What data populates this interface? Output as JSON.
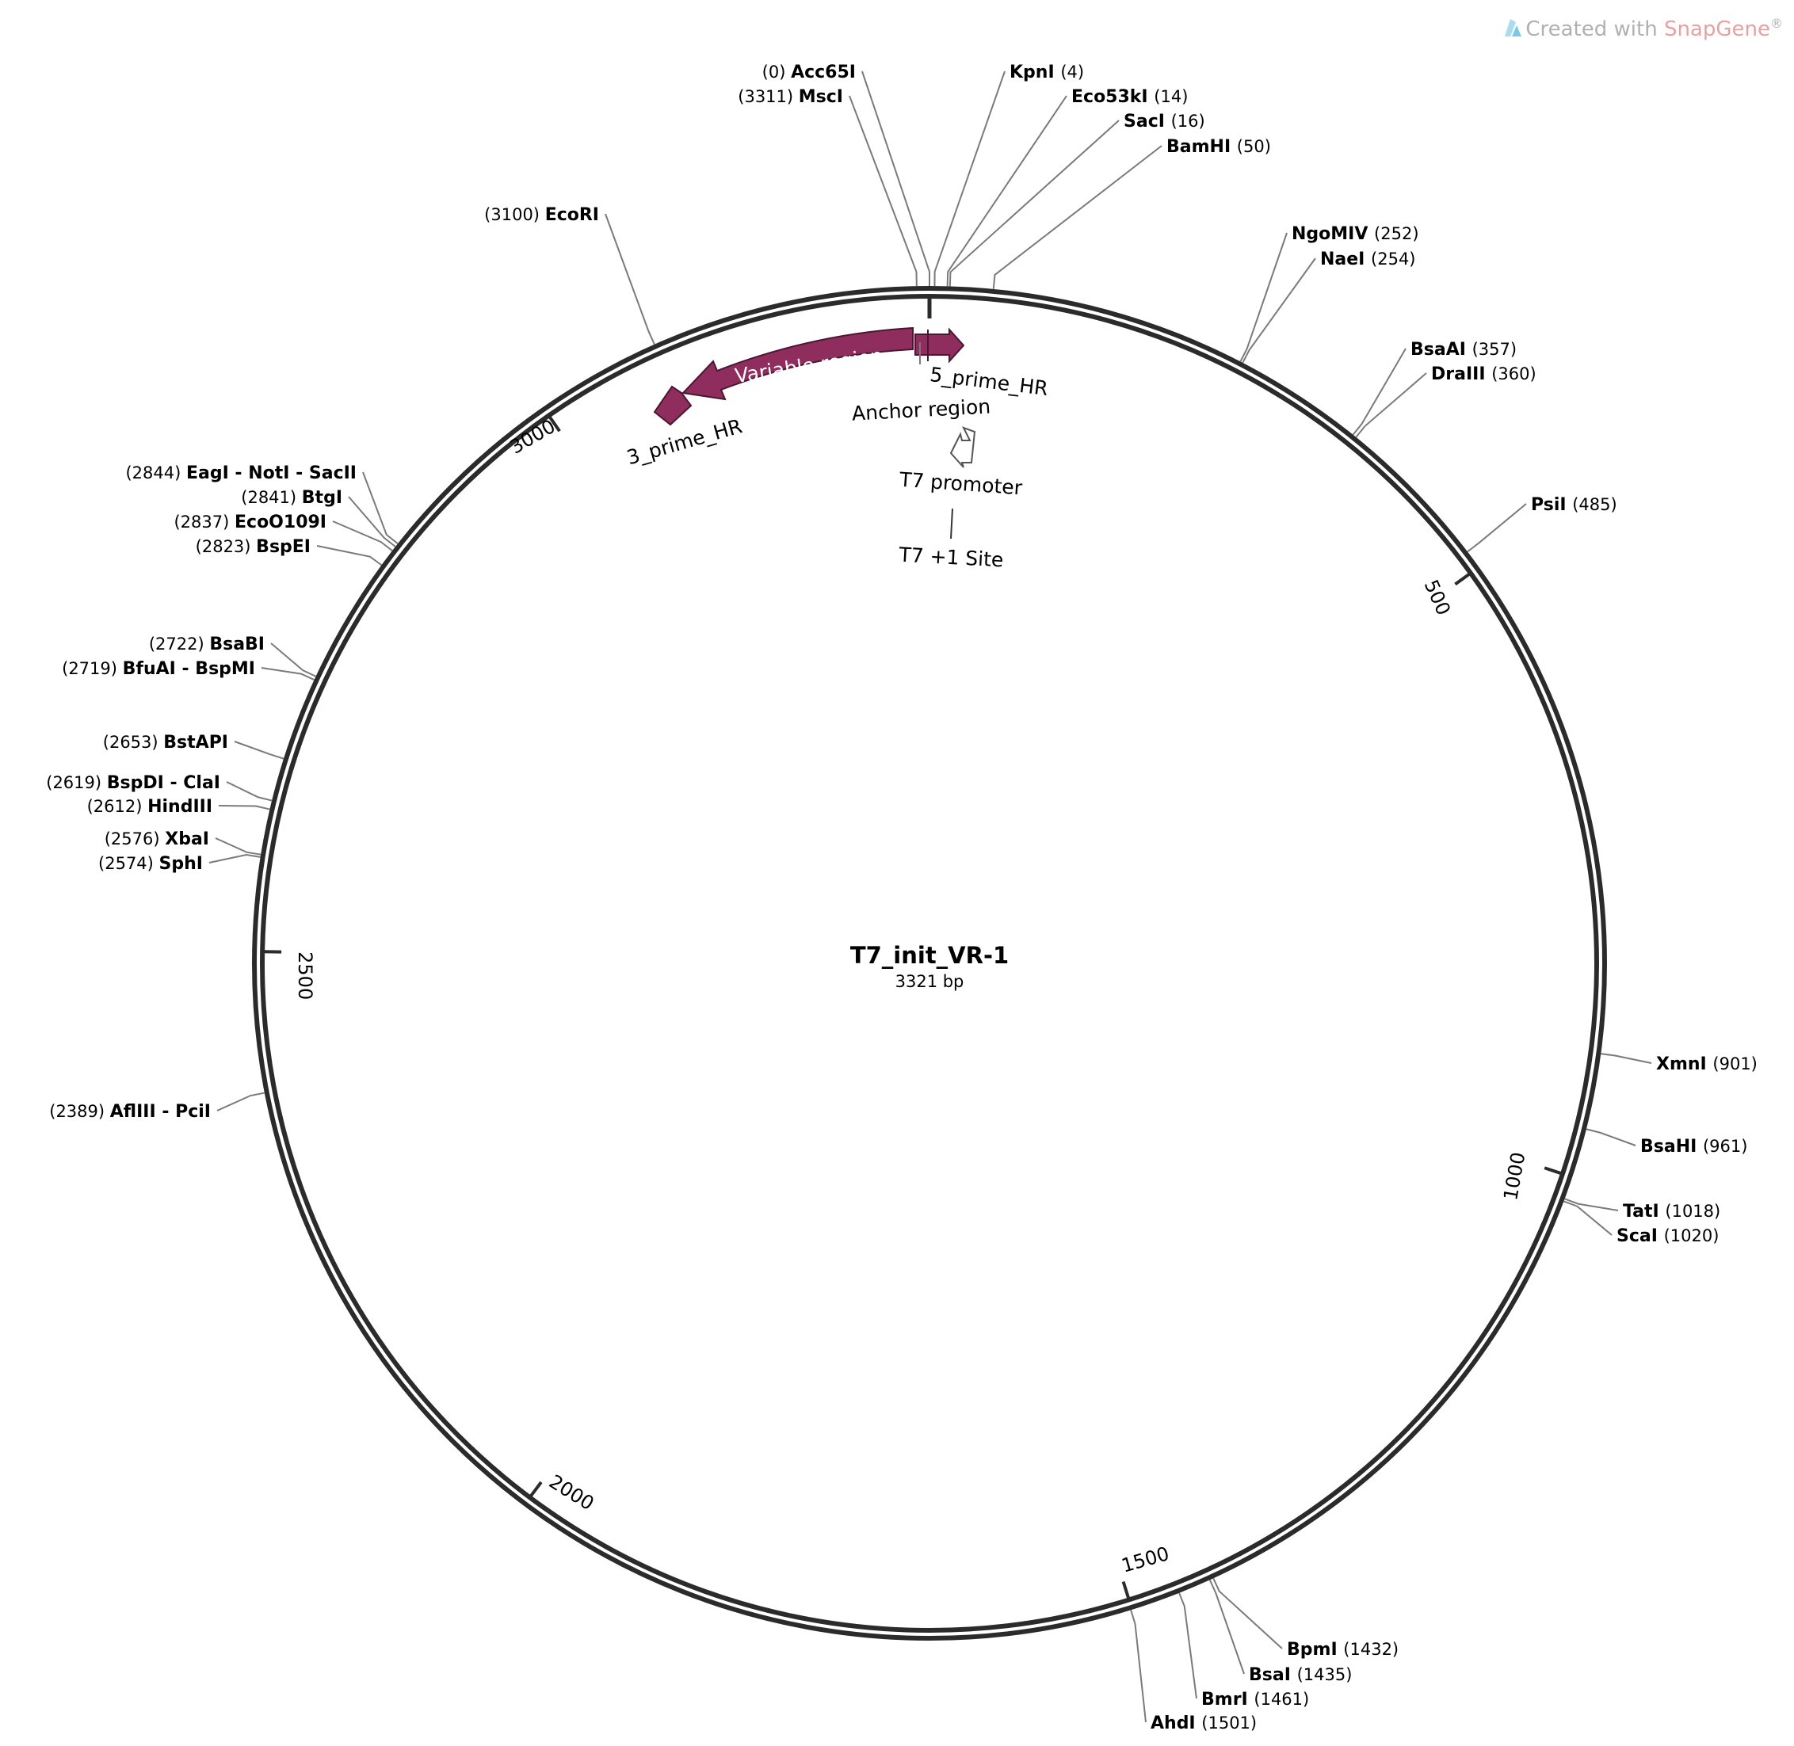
{
  "watermark": {
    "prefix": "Created with ",
    "brand": "SnapGene",
    "suffix": "®",
    "color_prefix": "#b0b0b0",
    "color_brand": "#e8a0a0"
  },
  "plasmid": {
    "name": "T7_init_VR-1",
    "length_label": "3321 bp",
    "length": 3321
  },
  "ticks": [
    "500",
    "1000",
    "1500",
    "2000",
    "2500",
    "3000"
  ],
  "features": [
    {
      "name": "Variable region",
      "color": "#8f2d5e"
    },
    {
      "name": "3_prime_HR",
      "color": "#8f2d5e"
    },
    {
      "name": "5_prime_HR",
      "color": "#8f2d5e"
    },
    {
      "name": "Anchor region"
    },
    {
      "name": "T7 promoter"
    },
    {
      "name": "T7 +1 Site"
    }
  ],
  "sites": [
    {
      "pos": "(0)",
      "name": "Acc65I",
      "bp": 0
    },
    {
      "pos": "(3311)",
      "name": "MscI",
      "bp": 3311
    },
    {
      "pos": "(4)",
      "name": "KpnI",
      "bp": 4
    },
    {
      "pos": "(14)",
      "name": "Eco53kI",
      "bp": 14
    },
    {
      "pos": "(16)",
      "name": "SacI",
      "bp": 16
    },
    {
      "pos": "(50)",
      "name": "BamHI",
      "bp": 50
    },
    {
      "pos": "(252)",
      "name": "NgoMIV",
      "bp": 252
    },
    {
      "pos": "(254)",
      "name": "NaeI",
      "bp": 254
    },
    {
      "pos": "(357)",
      "name": "BsaAI",
      "bp": 357
    },
    {
      "pos": "(360)",
      "name": "DraIII",
      "bp": 360
    },
    {
      "pos": "(485)",
      "name": "PsiI",
      "bp": 485
    },
    {
      "pos": "(901)",
      "name": "XmnI",
      "bp": 901
    },
    {
      "pos": "(961)",
      "name": "BsaHI",
      "bp": 961
    },
    {
      "pos": "(1018)",
      "name": "TatI",
      "bp": 1018
    },
    {
      "pos": "(1020)",
      "name": "ScaI",
      "bp": 1020
    },
    {
      "pos": "(1432)",
      "name": "BpmI",
      "bp": 1432
    },
    {
      "pos": "(1435)",
      "name": "BsaI",
      "bp": 1435
    },
    {
      "pos": "(1461)",
      "name": "BmrI",
      "bp": 1461
    },
    {
      "pos": "(1501)",
      "name": "AhdI",
      "bp": 1501
    },
    {
      "pos": "(3100)",
      "name": "EcoRI",
      "bp": 3100
    },
    {
      "pos": "(2844)",
      "name": "EagI - NotI - SacII",
      "bp": 2844
    },
    {
      "pos": "(2841)",
      "name": "BtgI",
      "bp": 2841
    },
    {
      "pos": "(2837)",
      "name": "EcoO109I",
      "bp": 2837
    },
    {
      "pos": "(2823)",
      "name": "BspEI",
      "bp": 2823
    },
    {
      "pos": "(2722)",
      "name": "BsaBI",
      "bp": 2722
    },
    {
      "pos": "(2719)",
      "name": "BfuAI - BspMI",
      "bp": 2719
    },
    {
      "pos": "(2653)",
      "name": "BstAPI",
      "bp": 2653
    },
    {
      "pos": "(2619)",
      "name": "BspDI - ClaI",
      "bp": 2619
    },
    {
      "pos": "(2612)",
      "name": "HindIII",
      "bp": 2612
    },
    {
      "pos": "(2576)",
      "name": "XbaI",
      "bp": 2576
    },
    {
      "pos": "(2574)",
      "name": "SphI",
      "bp": 2574
    },
    {
      "pos": "(2389)",
      "name": "AflIII - PciI",
      "bp": 2389
    }
  ]
}
